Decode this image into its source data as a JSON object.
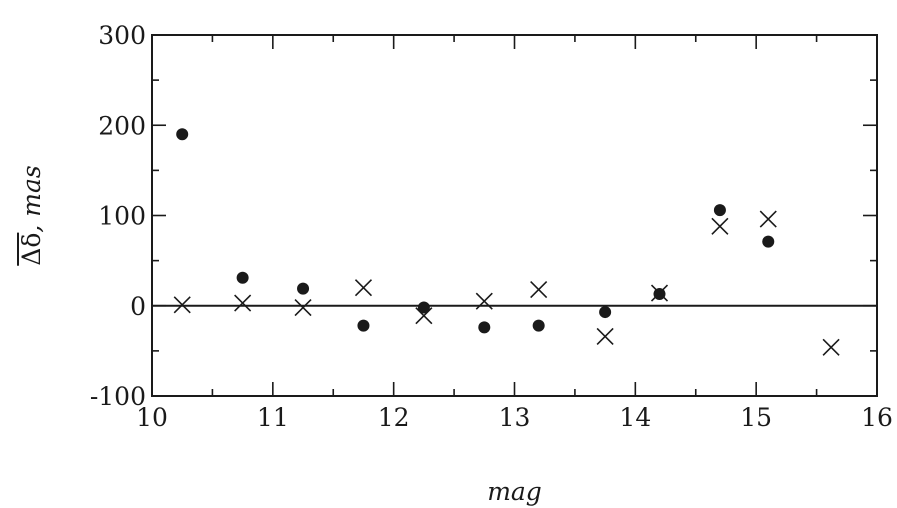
{
  "chart_data": {
    "type": "scatter",
    "title": "",
    "xlabel": "mag",
    "ylabel_prefix": "Δδ",
    "ylabel_suffix": ", mas",
    "xlim": [
      10,
      16
    ],
    "ylim": [
      -100,
      300
    ],
    "x_major_ticks": [
      10,
      11,
      12,
      13,
      14,
      15,
      16
    ],
    "x_tick_labels": [
      "10",
      "11",
      "12",
      "13",
      "14",
      "15",
      "16"
    ],
    "y_major_ticks": [
      -100,
      0,
      100,
      200,
      300
    ],
    "y_tick_labels": [
      "-100",
      "0",
      "100",
      "200",
      "300"
    ],
    "x_minor_step": 0.5,
    "y_minor_step": 50,
    "grid": false,
    "zero_line": true,
    "series": [
      {
        "marker": "dot",
        "color": "#1a1a1a",
        "x": [
          10.25,
          10.75,
          11.25,
          11.75,
          12.25,
          12.75,
          13.2,
          13.75,
          14.2,
          14.7,
          15.1
        ],
        "y": [
          190,
          31,
          19,
          -22,
          -2,
          -24,
          -22,
          -7,
          13,
          106,
          71
        ]
      },
      {
        "marker": "cross",
        "color": "#1a1a1a",
        "x": [
          10.25,
          10.75,
          11.25,
          11.75,
          12.25,
          12.75,
          13.2,
          13.75,
          14.2,
          14.7,
          15.1,
          15.62
        ],
        "y": [
          1,
          3,
          -2,
          20,
          -11,
          5,
          18,
          -34,
          14,
          88,
          96,
          -46
        ]
      }
    ]
  }
}
